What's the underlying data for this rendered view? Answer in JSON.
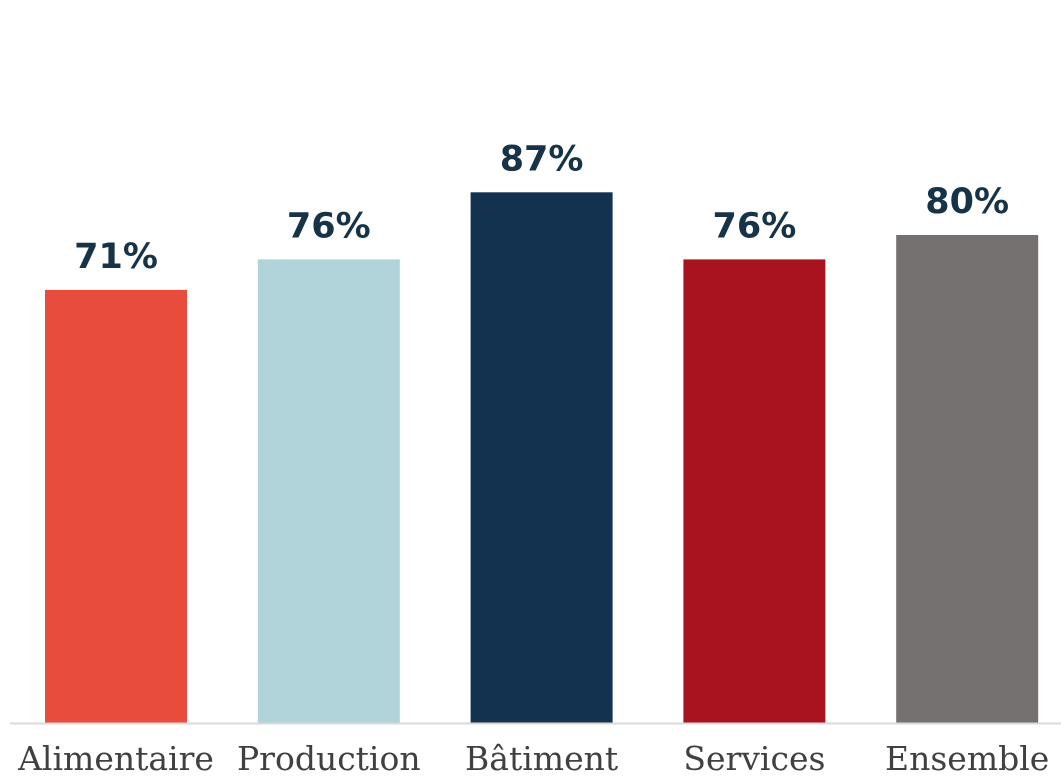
{
  "chart_data": {
    "type": "bar",
    "categories": [
      "Alimentaire",
      "Production",
      "Bâtiment",
      "Services",
      "Ensemble"
    ],
    "values": [
      71,
      76,
      87,
      76,
      80
    ],
    "value_labels": [
      "71%",
      "76%",
      "87%",
      "76%",
      "80%"
    ],
    "colors": [
      "#E84C3D",
      "#B1D3DA",
      "#12324F",
      "#A8131F",
      "#757171"
    ],
    "title": "",
    "xlabel": "",
    "ylabel": "",
    "ylim": [
      0,
      100
    ],
    "grid": false,
    "legend": "none",
    "data_labels_color": "#173348",
    "axis_color": "#D9D9D9"
  }
}
